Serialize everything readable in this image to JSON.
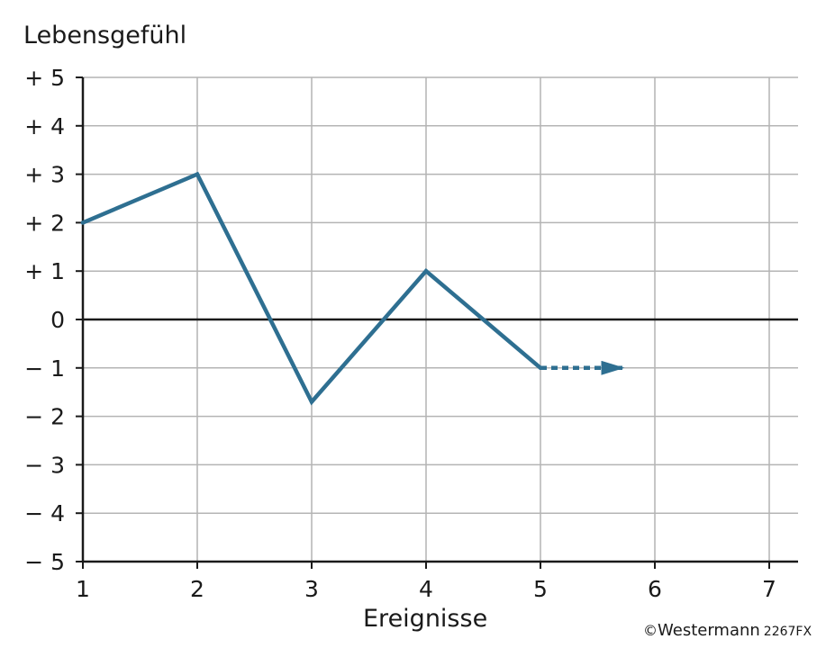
{
  "chart_data": {
    "type": "line",
    "ylabel": "Lebensgefühl",
    "xlabel": "Ereignisse",
    "x_ticks": [
      "1",
      "2",
      "3",
      "4",
      "5",
      "6",
      "7"
    ],
    "y_ticks": [
      "+ 5",
      "+ 4",
      "+ 3",
      "+ 2",
      "+ 1",
      "0",
      "− 1",
      "− 2",
      "− 3",
      "− 4",
      "− 5"
    ],
    "xlim": [
      1,
      7.25
    ],
    "ylim": [
      -5,
      5
    ],
    "grid": true,
    "series": [
      {
        "x": [
          1,
          2,
          3,
          4,
          5
        ],
        "y": [
          2,
          3,
          -1.7,
          1,
          -1
        ],
        "color": "#2e6f91",
        "line": "solid"
      },
      {
        "x": [
          5,
          5.72
        ],
        "y": [
          -1,
          -1
        ],
        "color": "#2e6f91",
        "line": "dashed",
        "arrow": true
      }
    ]
  },
  "credit": {
    "symbol": "©",
    "brand": "Westermann",
    "code": "2267FX"
  },
  "colors": {
    "line": "#2e6f91",
    "grid": "#b4b4b4",
    "axis": "#1a1a1a"
  }
}
